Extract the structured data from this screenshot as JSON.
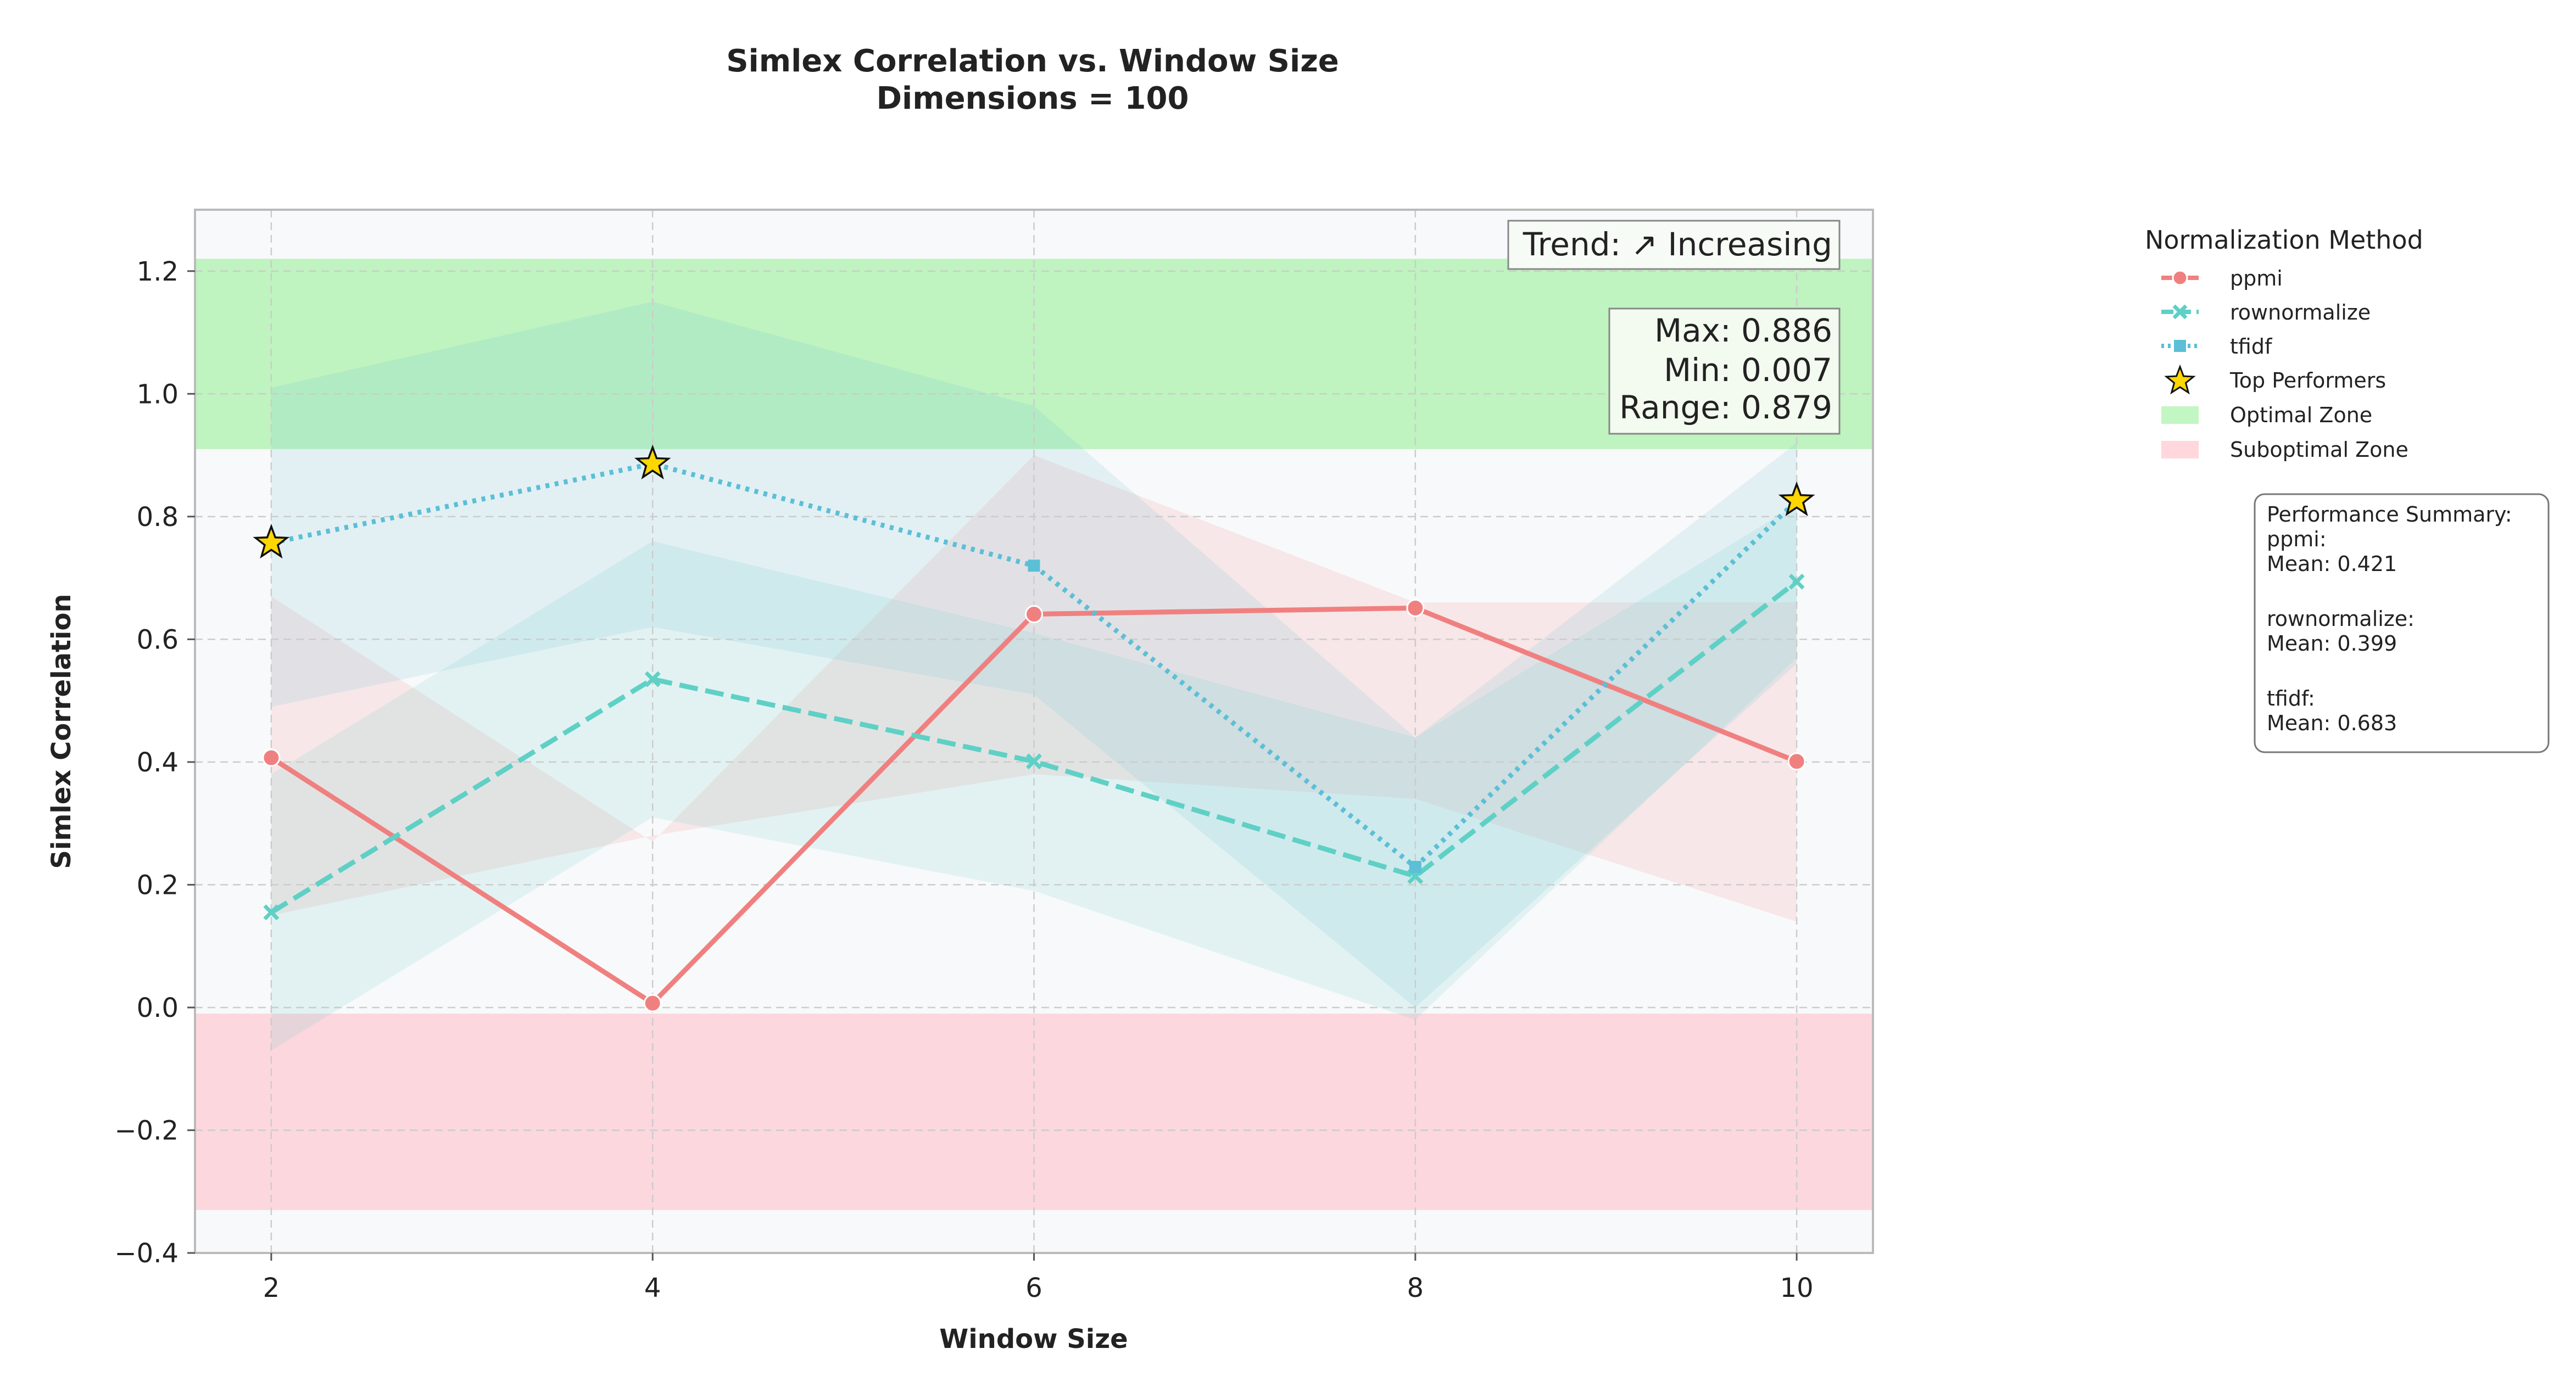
{
  "chart_data": {
    "type": "line",
    "title": "Simlex Correlation vs. Window Size",
    "subtitle": "Dimensions = 100",
    "xlabel": "Window Size",
    "ylabel": "Simlex Correlation",
    "x": [
      2,
      4,
      6,
      8,
      10
    ],
    "xlim": [
      1.6,
      10.4
    ],
    "ylim": [
      -0.4,
      1.3
    ],
    "xticks": [
      "2",
      "4",
      "6",
      "8",
      "10"
    ],
    "yticks": [
      "−0.4",
      "−0.2",
      "0.0",
      "0.2",
      "0.4",
      "0.6",
      "0.8",
      "1.0",
      "1.2"
    ],
    "ytick_values": [
      -0.4,
      -0.2,
      0.0,
      0.2,
      0.4,
      0.6,
      0.8,
      1.0,
      1.2
    ],
    "grid": true,
    "series": [
      {
        "name": "ppmi",
        "values": [
          0.407,
          0.007,
          0.641,
          0.651,
          0.401
        ],
        "color": "#f08080",
        "dash": "solid",
        "marker": "circle",
        "band_lower": [
          0.15,
          0.28,
          0.38,
          0.34,
          0.14
        ],
        "band_upper": [
          0.67,
          0.27,
          0.9,
          0.66,
          0.66
        ]
      },
      {
        "name": "rownormalize",
        "values": [
          0.155,
          0.535,
          0.401,
          0.214,
          0.694
        ],
        "color": "#5fd0c5",
        "dash": "dashed",
        "marker": "x",
        "band_lower": [
          -0.07,
          0.31,
          0.19,
          -0.02,
          0.57
        ],
        "band_upper": [
          0.38,
          0.76,
          0.61,
          0.44,
          0.82
        ]
      },
      {
        "name": "tfidf",
        "values": [
          0.757,
          0.886,
          0.72,
          0.229,
          0.826
        ],
        "color": "#5bbfd6",
        "dash": "dotted",
        "marker": "square",
        "band_lower": [
          0.49,
          0.62,
          0.51,
          0.0,
          0.56
        ],
        "band_upper": [
          1.01,
          1.15,
          0.98,
          0.44,
          0.92
        ]
      }
    ],
    "top_performers": {
      "label": "Top Performers",
      "points": [
        {
          "x": 2,
          "y": 0.757
        },
        {
          "x": 4,
          "y": 0.886
        },
        {
          "x": 10,
          "y": 0.826
        }
      ],
      "color": "#ffd700"
    },
    "zones": [
      {
        "name": "Optimal Zone",
        "from": 0.91,
        "to": 1.22,
        "color": "#90ee90"
      },
      {
        "name": "Suboptimal Zone",
        "from": -0.33,
        "to": -0.01,
        "color": "#ffb6c1"
      }
    ],
    "legend": {
      "title": "Normalization Method",
      "placement": "outside-right"
    },
    "annotations": {
      "trend": "Trend: ↗ Increasing",
      "stats": [
        "Max: 0.886",
        "Min: 0.007",
        "Range: 0.879"
      ],
      "summary": [
        "Performance Summary:",
        "ppmi:",
        "Mean: 0.421",
        "",
        "rownormalize:",
        "Mean: 0.399",
        "",
        "tfidf:",
        "Mean: 0.683"
      ]
    }
  }
}
